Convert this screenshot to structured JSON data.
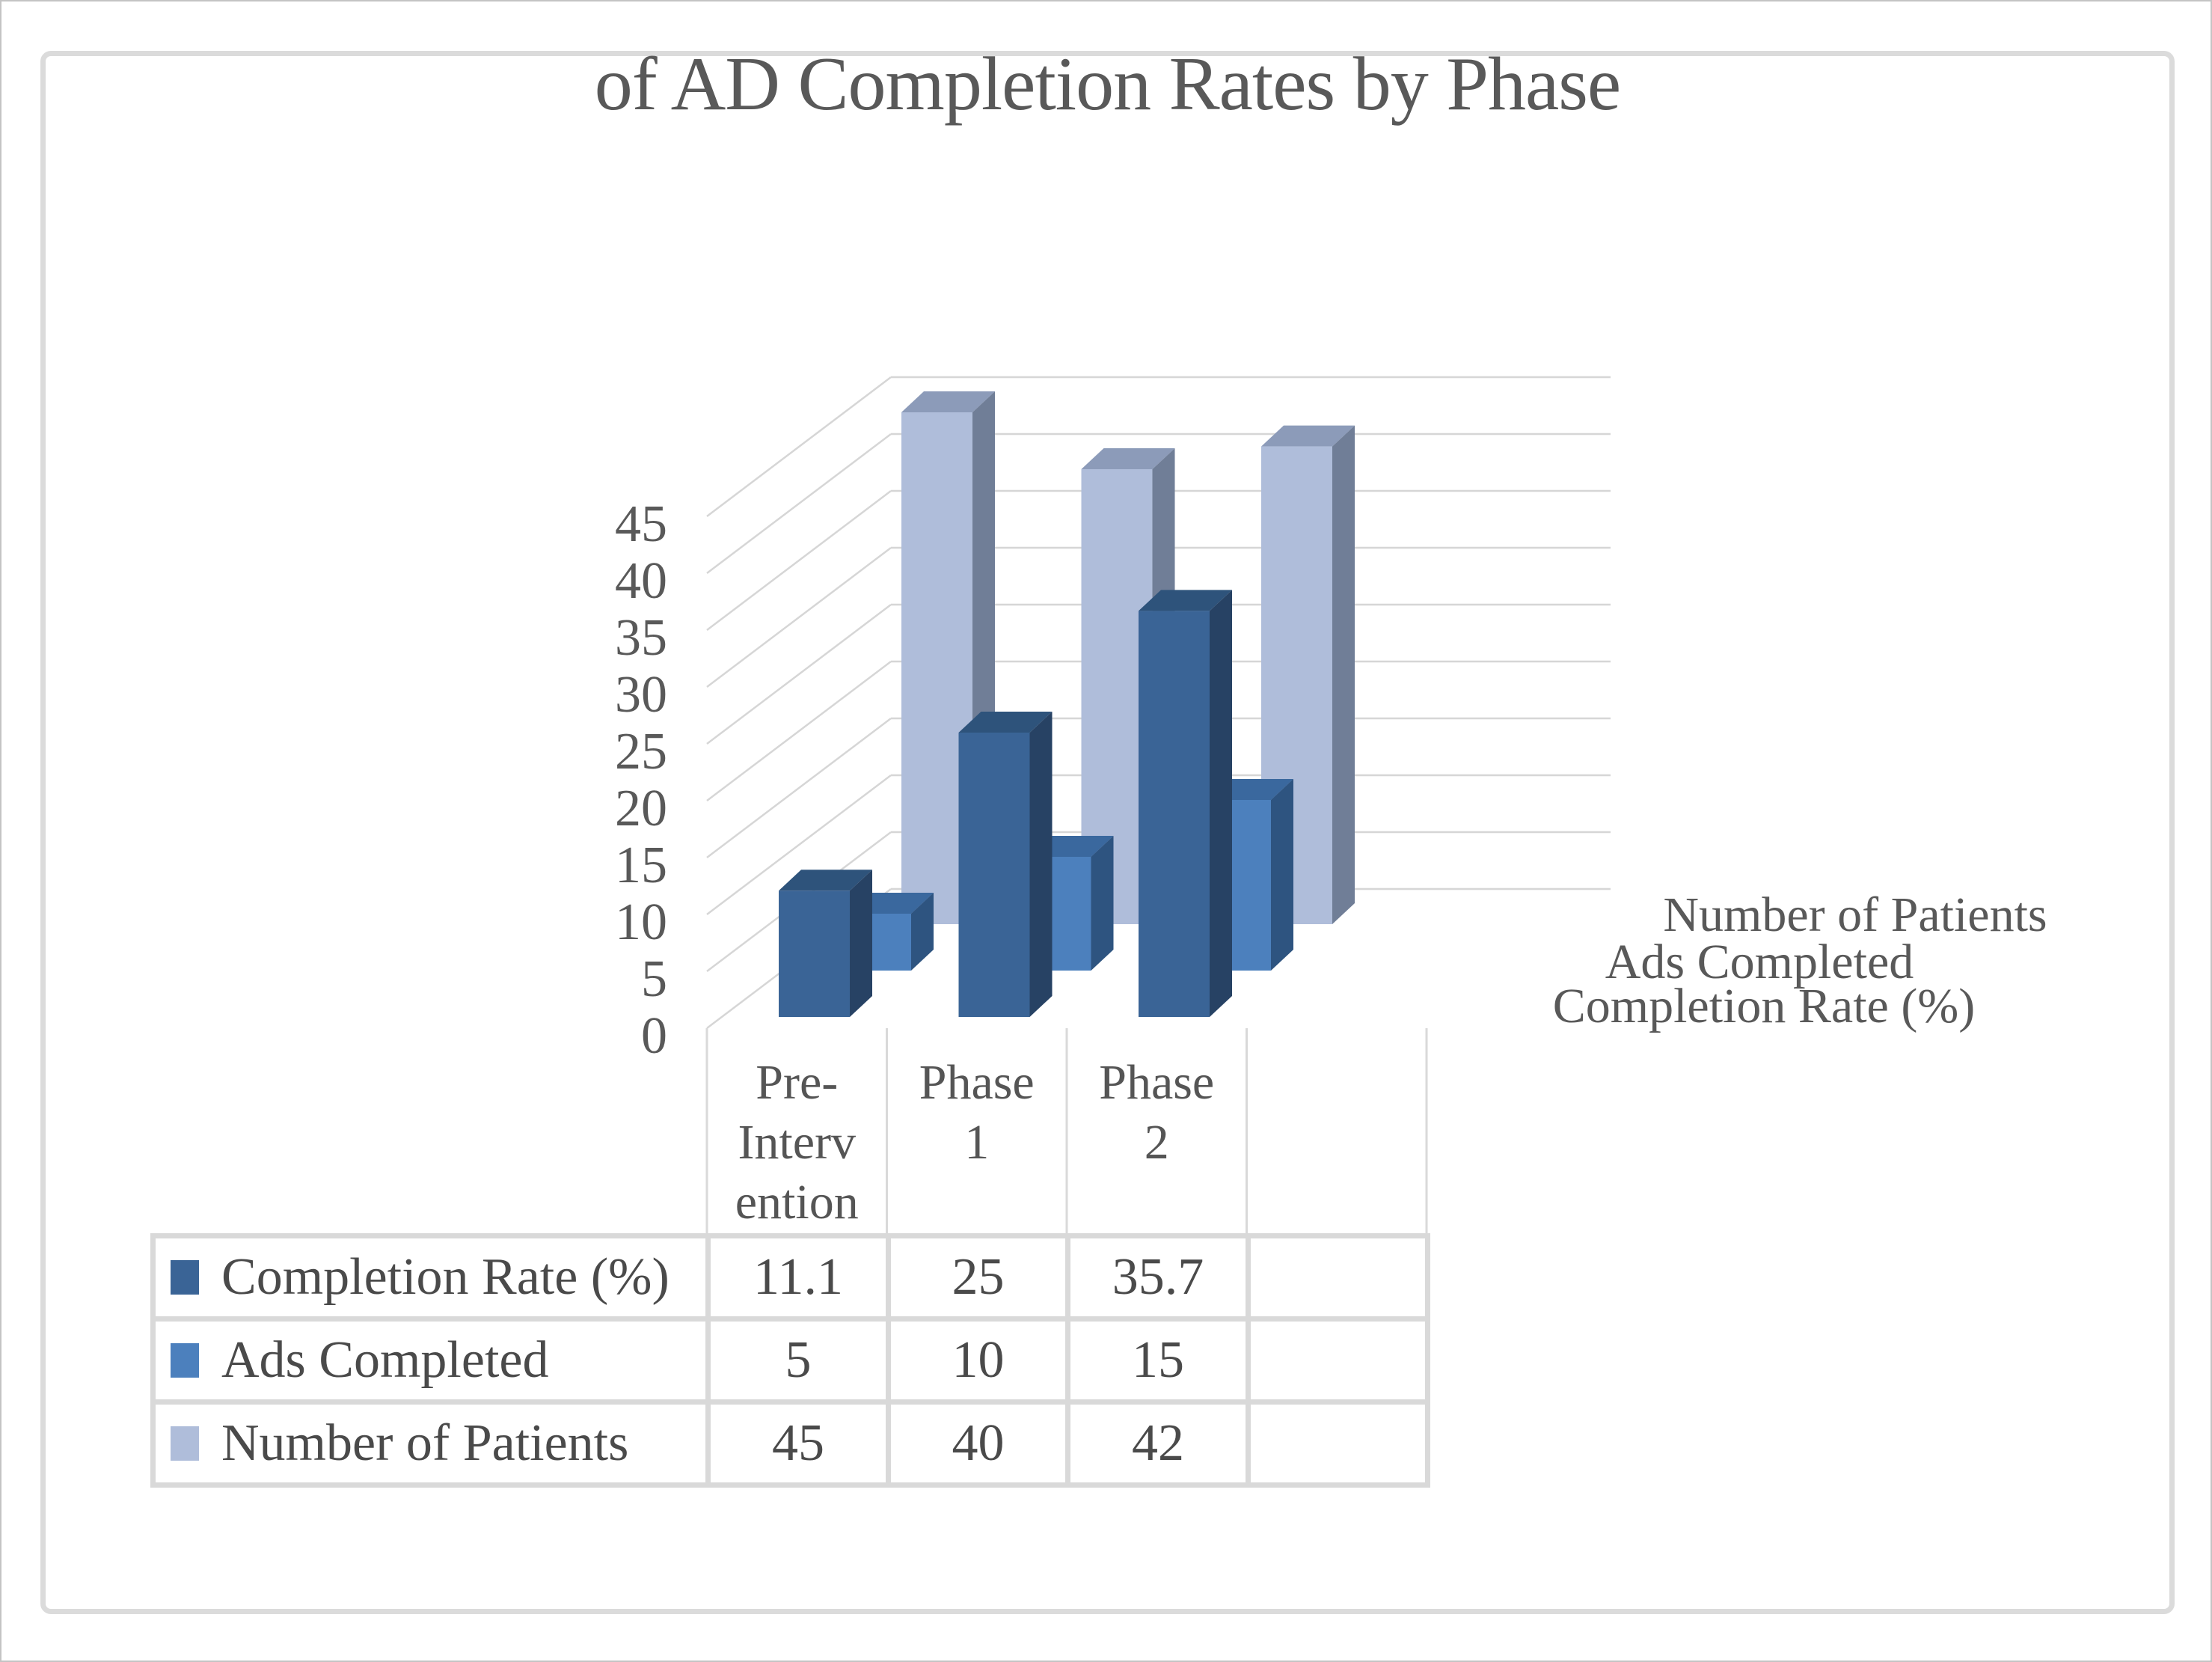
{
  "window": {
    "background": "#ffffff",
    "outer_border_color": "#c4c4c4",
    "frame_border_color": "#dbdbdb"
  },
  "title": {
    "text": "of AD Completion Rates by Phase",
    "color": "#595959"
  },
  "chart_data": {
    "type": "bar",
    "projection": "3d-column",
    "title": "of AD Completion Rates by Phase",
    "categories": [
      "Pre-Intervention",
      "Phase 1",
      "Phase 2"
    ],
    "category_label_lines": [
      [
        "Pre-",
        "Interv",
        "ention"
      ],
      [
        "Phase",
        "1"
      ],
      [
        "Phase",
        "2"
      ]
    ],
    "series": [
      {
        "name": "Completion Rate (%)",
        "values": [
          11.1,
          25,
          35.7
        ],
        "color": "#3a6496",
        "color_side": "#274264",
        "color_top": "#2e537b"
      },
      {
        "name": "Ads Completed",
        "values": [
          5,
          10,
          15
        ],
        "color": "#4c80bd",
        "color_side": "#2e5480",
        "color_top": "#3a689e"
      },
      {
        "name": "Number of Patients",
        "values": [
          45,
          40,
          42
        ],
        "color": "#afbdda",
        "color_side": "#707e97",
        "color_top": "#8c9bb9"
      }
    ],
    "value_axis": {
      "min": 0,
      "max": 45,
      "step": 5,
      "tick_labels": [
        "0",
        "5",
        "10",
        "15",
        "20",
        "25",
        "30",
        "35",
        "40",
        "45"
      ]
    },
    "depth_axis_labels": [
      "Number of Patients",
      "Ads Completed",
      "Completion Rate (%)"
    ],
    "grid": true,
    "gridline_color": "#d6d6d6",
    "separator_color": "#d9d9d9",
    "table_line_color": "#d9d9d9",
    "axis_text_color": "#595959",
    "table_text_color": "#4a4a4a",
    "legend_position": "data-table-left",
    "data_table_shown": true
  }
}
